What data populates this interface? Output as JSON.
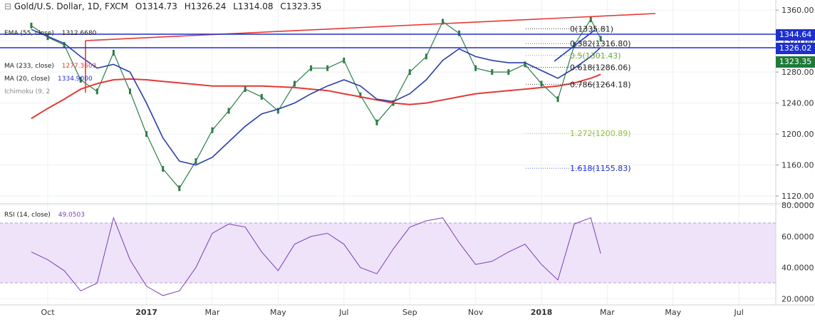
{
  "header": {
    "symbol": "Gold/U.S. Dollar, 1D, FXCM",
    "open": "O1314.73",
    "high": "H1326.24",
    "low": "L1314.08",
    "close": "C1323.35"
  },
  "indicators": {
    "ema55_label": "EMA (55, close)",
    "ema55_value": "1312.6680",
    "ma233_label": "MA (233, close)",
    "ma233_value": "1277.3603",
    "ma20_label": "MA (20, close)",
    "ma20_value": "1334.9000",
    "ichimoku_label": "Ichimoku (9, 2",
    "rsi_label": "RSI (14, close)",
    "rsi_value": "49.0503"
  },
  "price_tags": [
    {
      "value": "1344.64",
      "color": "#1e2fd1"
    },
    {
      "value": "1326.02",
      "color": "#1e2fd1"
    },
    {
      "value": "1323.35",
      "color": "#1f7a3a"
    }
  ],
  "fib_levels": [
    {
      "ratio": "0",
      "label": "(1335.81)",
      "price": 1335.81,
      "color": "#222222"
    },
    {
      "ratio": "0.382",
      "label": "(1316.80)",
      "price": 1316.8,
      "color": "#222222"
    },
    {
      "ratio": "0.5",
      "label": "(1301.43)",
      "price": 1301.43,
      "color": "#6aa43c"
    },
    {
      "ratio": "0.618",
      "label": "(1286.06)",
      "price": 1286.06,
      "color": "#222222"
    },
    {
      "ratio": "0.786",
      "label": "(1264.18)",
      "price": 1264.18,
      "color": "#222222"
    },
    {
      "ratio": "1.272",
      "label": "(1200.89)",
      "price": 1200.89,
      "color": "#8fbf3a"
    },
    {
      "ratio": "1.618",
      "label": "(1155.83)",
      "price": 1155.83,
      "color": "#1e2fd1"
    }
  ],
  "chart_data": {
    "type": "line",
    "title": "Gold/U.S. Dollar, 1D, FXCM",
    "x_ticks": [
      "Oct",
      "2017",
      "Mar",
      "May",
      "Jul",
      "Sep",
      "Nov",
      "2018",
      "Mar",
      "May",
      "Jul"
    ],
    "y_ticks": [
      "1360.00",
      "1320.00",
      "1280.00",
      "1240.00",
      "1200.00",
      "1160.00",
      "1120.00"
    ],
    "ylim": [
      1110,
      1373
    ],
    "rsi_ticks": [
      "80.0000",
      "60.0000",
      "40.0000",
      "20.0000"
    ],
    "rsi_ylim": [
      16,
      81
    ],
    "rsi_bands": [
      30,
      70
    ],
    "x_months": [
      -0.5,
      0,
      0.5,
      1,
      1.5,
      2,
      2.5,
      3,
      3.5,
      4,
      4.5,
      5,
      5.5,
      6,
      6.5,
      7,
      7.5,
      8,
      8.5,
      9,
      9.5,
      10,
      10.5,
      11,
      11.5,
      12,
      12.5,
      13,
      13.5,
      14,
      14.5,
      15,
      15.5,
      16,
      16.5,
      16.8
    ],
    "series": [
      {
        "name": "Gold/U.S. Dollar",
        "values": [
          1340,
          1325,
          1315,
          1270,
          1255,
          1305,
          1255,
          1200,
          1155,
          1130,
          1165,
          1205,
          1230,
          1258,
          1248,
          1230,
          1265,
          1285,
          1285,
          1295,
          1250,
          1215,
          1240,
          1280,
          1300,
          1345,
          1330,
          1285,
          1280,
          1280,
          1290,
          1265,
          1245,
          1315,
          1348,
          1323
        ]
      },
      {
        "name": "MA (233, close)",
        "values": [
          1220,
          1233,
          1245,
          1258,
          1265,
          1270,
          1271,
          1270,
          1268,
          1266,
          1264,
          1262,
          1262,
          1262,
          1262,
          1261,
          1260,
          1258,
          1256,
          1252,
          1248,
          1244,
          1240,
          1238,
          1240,
          1244,
          1248,
          1252,
          1254,
          1256,
          1258,
          1260,
          1262,
          1266,
          1272,
          1277
        ]
      },
      {
        "name": "EMA (55, close)",
        "values": [
          1335,
          1326,
          1317,
          1300,
          1285,
          1290,
          1280,
          1240,
          1195,
          1165,
          1160,
          1170,
          1190,
          1210,
          1226,
          1232,
          1240,
          1252,
          1262,
          1270,
          1262,
          1245,
          1242,
          1252,
          1270,
          1295,
          1310,
          1300,
          1295,
          1292,
          1292,
          1282,
          1272,
          1285,
          1300,
          1312
        ]
      },
      {
        "name": "RSI (14, close)",
        "values": [
          50,
          45,
          38,
          25,
          30,
          72,
          45,
          28,
          22,
          25,
          40,
          62,
          68,
          66,
          50,
          38,
          55,
          60,
          62,
          55,
          40,
          36,
          52,
          66,
          70,
          72,
          56,
          42,
          44,
          50,
          55,
          42,
          32,
          68,
          72,
          49
        ]
      }
    ]
  }
}
